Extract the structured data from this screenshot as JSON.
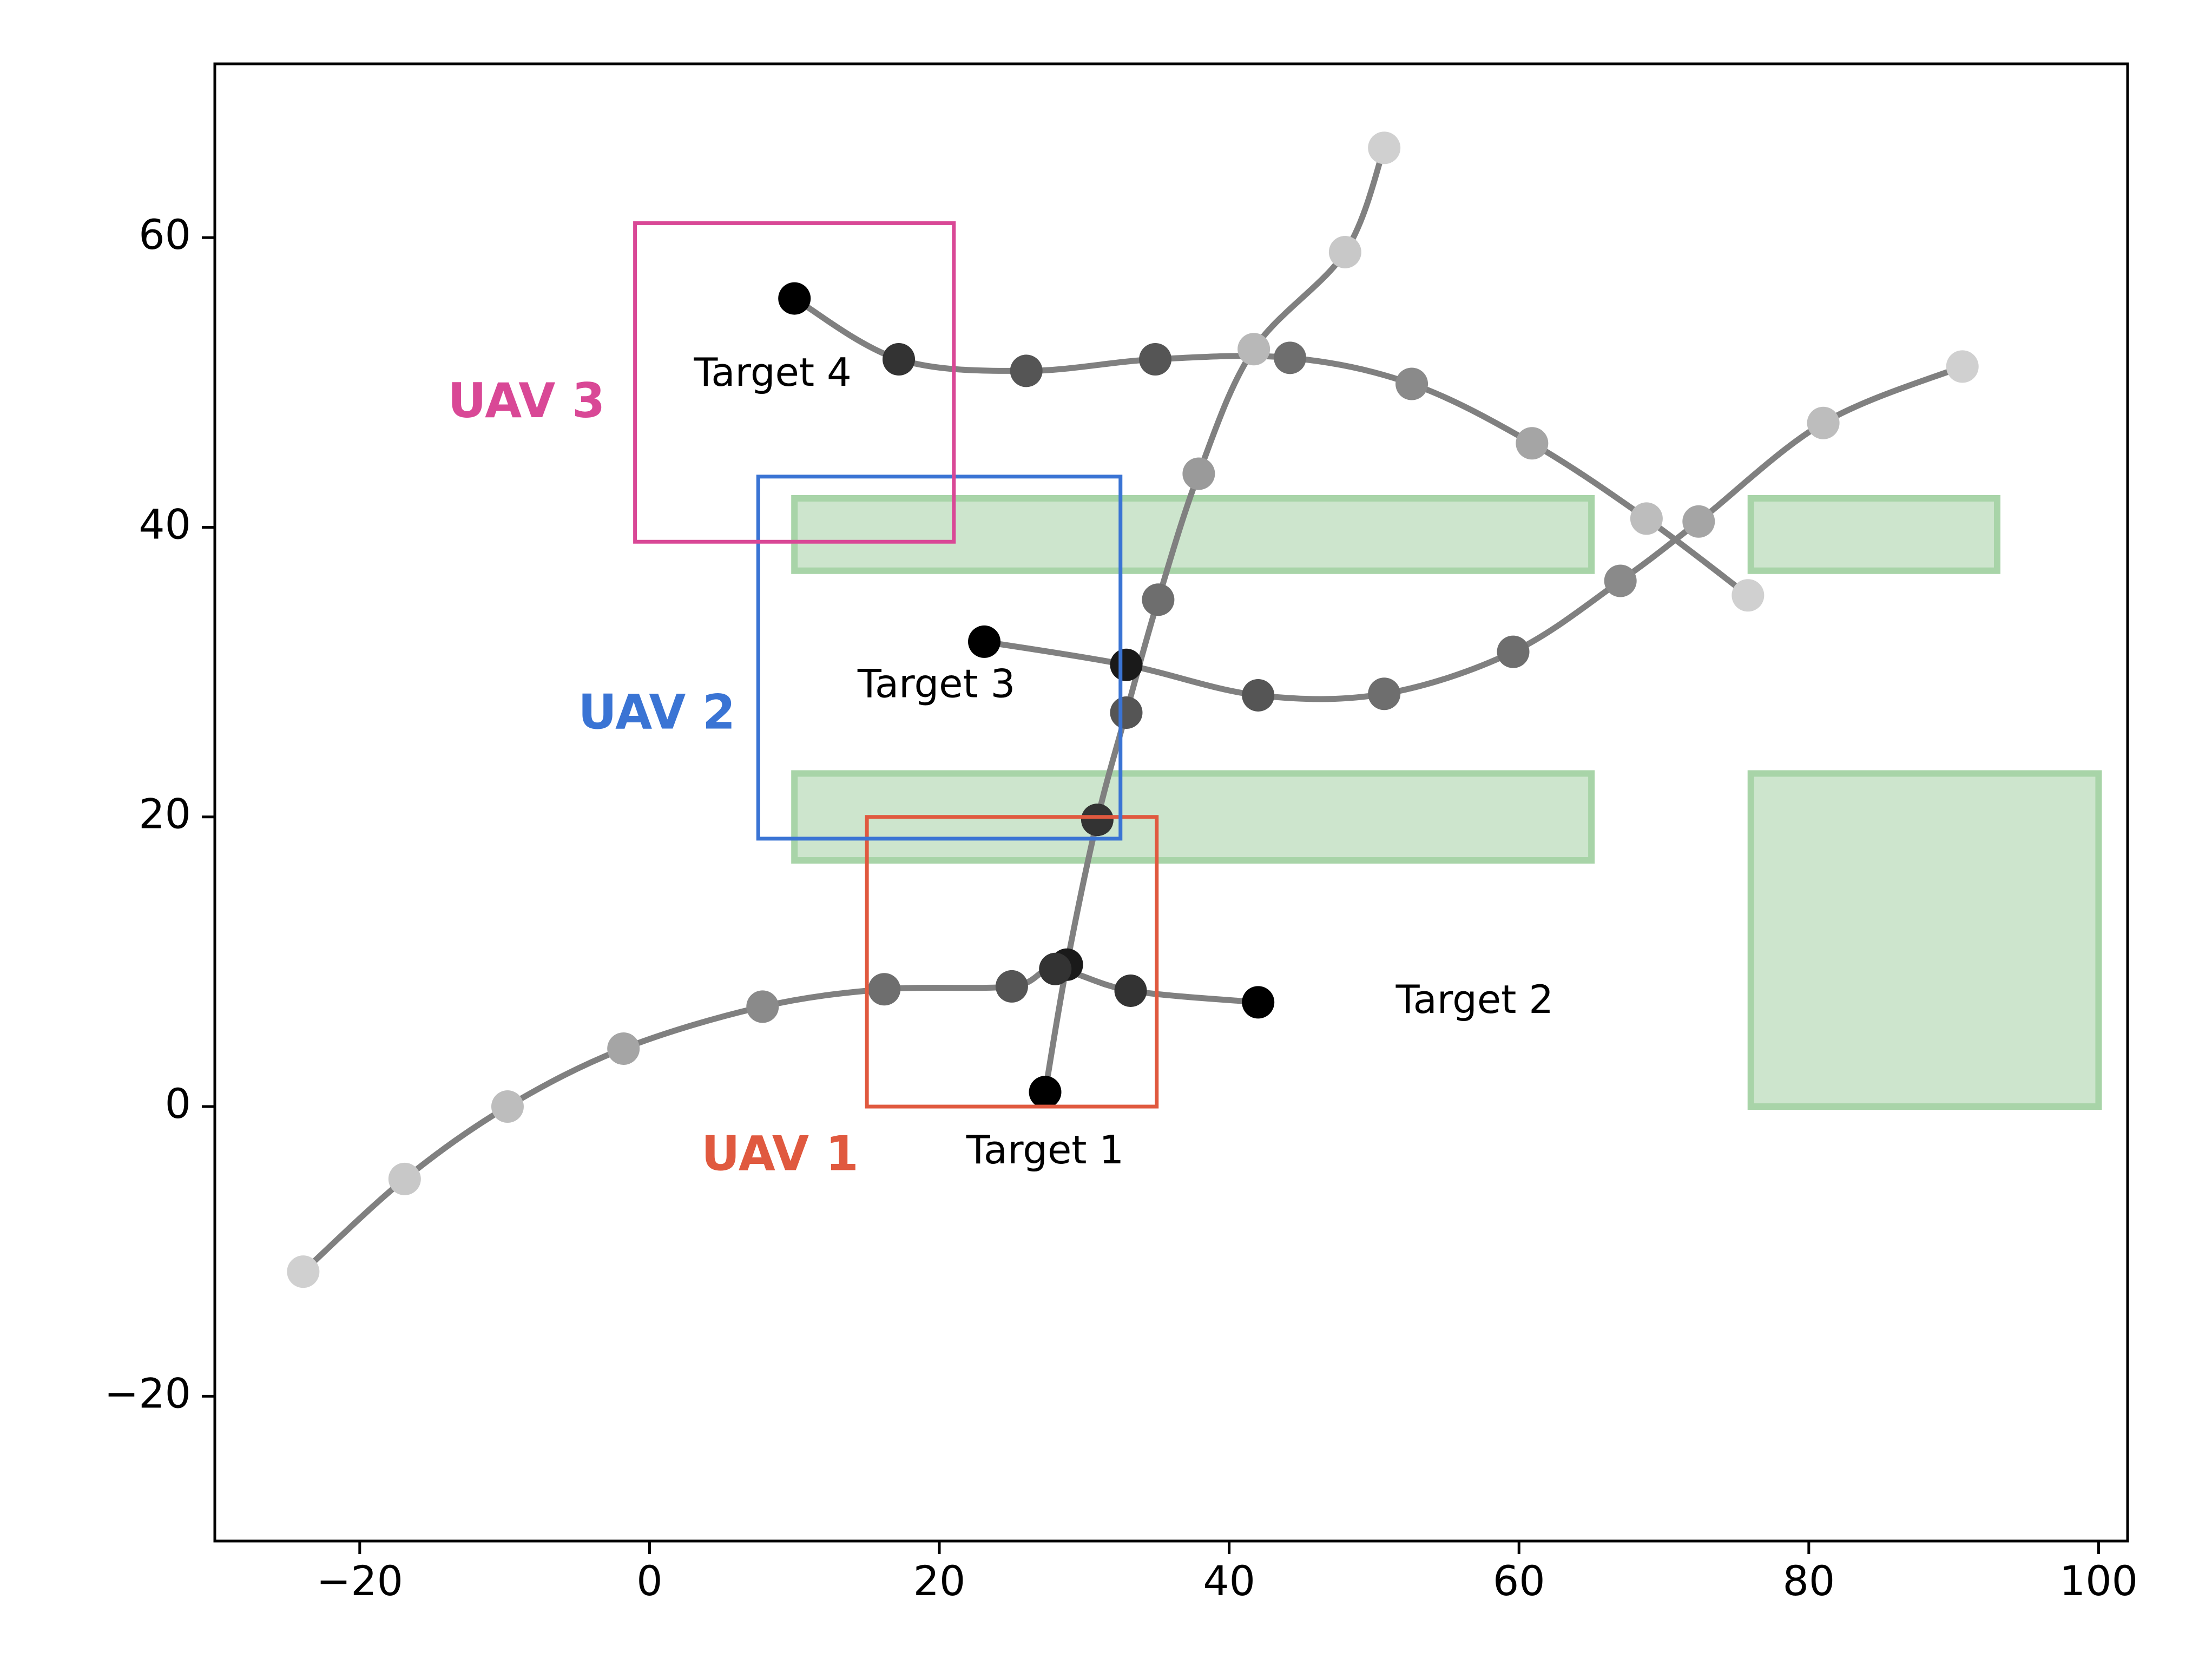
{
  "chart_data": {
    "type": "scatter",
    "title": "",
    "xlabel": "",
    "ylabel": "",
    "xlim": [
      -30,
      102
    ],
    "ylim": [
      -30,
      72
    ],
    "grid": false,
    "legend": "none",
    "x_ticks": [
      {
        "value": -20,
        "label": "−20"
      },
      {
        "value": 0,
        "label": "0"
      },
      {
        "value": 20,
        "label": "20"
      },
      {
        "value": 40,
        "label": "40"
      },
      {
        "value": 60,
        "label": "60"
      },
      {
        "value": 80,
        "label": "80"
      },
      {
        "value": 100,
        "label": "100"
      }
    ],
    "y_ticks": [
      {
        "value": -20,
        "label": "−20"
      },
      {
        "value": 0,
        "label": "0"
      },
      {
        "value": 20,
        "label": "20"
      },
      {
        "value": 40,
        "label": "40"
      },
      {
        "value": 60,
        "label": "60"
      }
    ],
    "colors": {
      "trajectory": "#808080",
      "obstacle_fill": "#cde5cd",
      "obstacle_edge": "#a8d4a8",
      "uav1": "#e0593f",
      "uav2": "#3a74d4",
      "uav3": "#d94896"
    },
    "obstacles": [
      {
        "x0": 10,
        "x1": 65,
        "y0": 37,
        "y1": 42
      },
      {
        "x0": 76,
        "x1": 93,
        "y0": 37,
        "y1": 42
      },
      {
        "x0": 10,
        "x1": 65,
        "y0": 17,
        "y1": 23
      },
      {
        "x0": 76,
        "x1": 100,
        "y0": 0,
        "y1": 23
      }
    ],
    "uav_views": [
      {
        "name": "UAV 1",
        "color": "#e0593f",
        "x0": 15,
        "x1": 35,
        "y0": 0,
        "y1": 20,
        "label_x": 9,
        "label_y": -3.5
      },
      {
        "name": "UAV 2",
        "color": "#3a74d4",
        "x0": 7.5,
        "x1": 32.5,
        "y0": 18.5,
        "y1": 43.5,
        "label_x": 0.5,
        "label_y": 27
      },
      {
        "name": "UAV 3",
        "color": "#d94896",
        "x0": -1,
        "x1": 21,
        "y0": 39,
        "y1": 61,
        "label_x": -8.5,
        "label_y": 48.5
      }
    ],
    "series": [
      {
        "name": "Target 1",
        "label_x": 27.3,
        "label_y": -3.2,
        "points": [
          [
            27.3,
            1
          ],
          [
            28.8,
            9.8
          ],
          [
            30.9,
            19.8
          ],
          [
            32.9,
            27.2
          ],
          [
            35.1,
            35
          ],
          [
            37.9,
            43.7
          ],
          [
            41.7,
            52.3
          ],
          [
            48,
            59
          ],
          [
            50.7,
            66.2
          ]
        ],
        "point_colors": [
          "#000000",
          "#1a1a1a",
          "#333333",
          "#555555",
          "#6e6e6e",
          "#9a9a9a",
          "#b8b8b8",
          "#c8c8c8",
          "#d0d0d0"
        ]
      },
      {
        "name": "Target 2",
        "label_x": 51.5,
        "label_y": 7.2,
        "points": [
          [
            42,
            7.2
          ],
          [
            33.2,
            8
          ],
          [
            28,
            9.5
          ],
          [
            25,
            8.3
          ],
          [
            16.2,
            8.1
          ],
          [
            7.8,
            6.9
          ],
          [
            -1.8,
            4
          ],
          [
            -9.8,
            0
          ],
          [
            -16.9,
            -5
          ],
          [
            -23.9,
            -11.4
          ]
        ],
        "point_colors": [
          "#000000",
          "#333333",
          "#333333",
          "#555555",
          "#6e6e6e",
          "#8a8a8a",
          "#a5a5a5",
          "#bdbdbd",
          "#c8c8c8",
          "#d0d0d0"
        ]
      },
      {
        "name": "Target 3",
        "label_x": 19.8,
        "label_y": 29,
        "points": [
          [
            23.1,
            32.1
          ],
          [
            32.9,
            30.5
          ],
          [
            42,
            28.4
          ],
          [
            50.7,
            28.5
          ],
          [
            59.6,
            31.4
          ],
          [
            67,
            36.3
          ],
          [
            72.4,
            40.4
          ],
          [
            81,
            47.2
          ],
          [
            90.6,
            51.1
          ]
        ],
        "point_colors": [
          "#000000",
          "#1a1a1a",
          "#555555",
          "#6e6e6e",
          "#6e6e6e",
          "#8a8a8a",
          "#a5a5a5",
          "#bdbdbd",
          "#d0d0d0"
        ]
      },
      {
        "name": "Target 4",
        "label_x": 8.5,
        "label_y": 50.5,
        "points": [
          [
            10,
            55.8
          ],
          [
            17.2,
            51.6
          ],
          [
            26,
            50.8
          ],
          [
            34.9,
            51.6
          ],
          [
            44.2,
            51.7
          ],
          [
            52.6,
            49.9
          ],
          [
            60.9,
            45.8
          ],
          [
            68.8,
            40.6
          ],
          [
            75.8,
            35.3
          ]
        ],
        "point_colors": [
          "#000000",
          "#333333",
          "#555555",
          "#555555",
          "#6e6e6e",
          "#8a8a8a",
          "#a5a5a5",
          "#bdbdbd",
          "#d0d0d0"
        ]
      }
    ]
  }
}
